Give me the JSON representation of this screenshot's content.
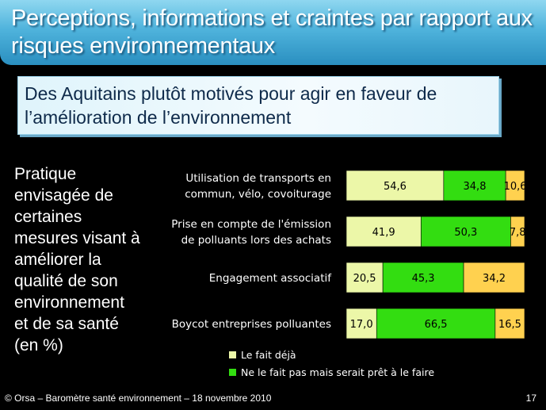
{
  "title": "Perceptions, informations et craintes par rapport aux risques environnementaux",
  "subtitle": "Des Aquitains plutôt motivés pour agir en faveur de l’amélioration de l’environnement",
  "left_text": "Pratique envisagée de certaines mesures visant à améliorer la qualité de son environnement et de sa santé (en %)",
  "footer": {
    "left": "© Orsa – Baromètre santé environnement – 18 novembre 2010",
    "page": "17"
  },
  "chart_data": {
    "type": "bar",
    "orientation": "horizontal",
    "stacked": true,
    "categories": [
      [
        "Utilisation de transports en",
        "commun, vélo, covoiturage"
      ],
      [
        "Prise en compte de l'émission",
        "de polluants lors des achats"
      ],
      [
        "Engagement associatif"
      ],
      [
        "Boycot entreprises polluantes"
      ]
    ],
    "series": [
      {
        "name": "Le fait déjà",
        "values": [
          54.6,
          41.9,
          20.5,
          17.0
        ],
        "labels": [
          "54,6",
          "41,9",
          "20,5",
          "17,0"
        ],
        "color": "#ecf7a8"
      },
      {
        "name": "Ne le fait pas mais serait prêt à le faire",
        "values": [
          34.8,
          50.3,
          45.3,
          66.5
        ],
        "labels": [
          "34,8",
          "50,3",
          "45,3",
          "66,5"
        ],
        "color": "#33dd11"
      },
      {
        "name": "",
        "values": [
          10.6,
          7.8,
          34.2,
          16.5
        ],
        "labels": [
          "10,6",
          "7,8",
          "34,2",
          "16,5"
        ],
        "color": "#ffd14f"
      }
    ],
    "xlim": [
      0,
      100
    ],
    "legend_position": "bottom"
  }
}
